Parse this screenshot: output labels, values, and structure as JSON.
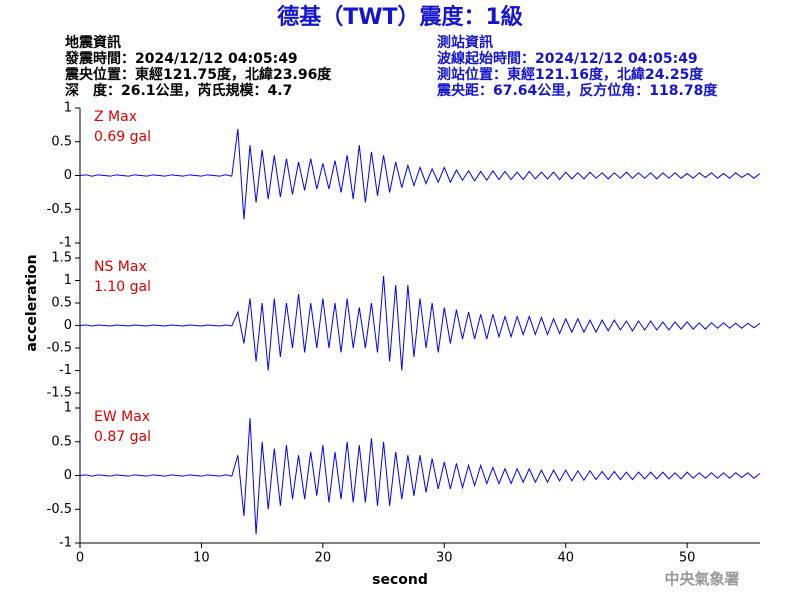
{
  "chart_data": {
    "type": "line",
    "title": "德基（TWT）震度：1級",
    "info_left": [
      "地震資訊",
      "發震時間：2024/12/12 04:05:49",
      "震央位置：東經121.75度，北緯23.96度",
      "深　度：26.1公里，芮氏規模：4.7"
    ],
    "info_right": [
      "測站資訊",
      "波線起始時間：2024/12/12 04:05:49",
      "測站位置：東經121.16度，北緯24.25度",
      "震央距：67.64公里，反方位角：118.78度"
    ],
    "ylabel": "acceleration",
    "xlabel": "second",
    "credit": "中央氣象署",
    "color": "#0000ff",
    "xlim": [
      0,
      56
    ],
    "xticks": [
      0,
      10,
      20,
      30,
      40,
      50
    ],
    "x": [
      0,
      0.5,
      1,
      1.5,
      2,
      2.5,
      3,
      3.5,
      4,
      4.5,
      5,
      5.5,
      6,
      6.5,
      7,
      7.5,
      8,
      8.5,
      9,
      9.5,
      10,
      10.5,
      11,
      11.5,
      12,
      12.5,
      13,
      13.5,
      14,
      14.5,
      15,
      15.5,
      16,
      16.5,
      17,
      17.5,
      18,
      18.5,
      19,
      19.5,
      20,
      20.5,
      21,
      21.5,
      22,
      22.5,
      23,
      23.5,
      24,
      24.5,
      25,
      25.5,
      26,
      26.5,
      27,
      27.5,
      28,
      28.5,
      29,
      29.5,
      30,
      30.5,
      31,
      31.5,
      32,
      32.5,
      33,
      33.5,
      34,
      34.5,
      35,
      35.5,
      36,
      36.5,
      37,
      37.5,
      38,
      38.5,
      39,
      39.5,
      40,
      40.5,
      41,
      41.5,
      42,
      42.5,
      43,
      43.5,
      44,
      44.5,
      45,
      45.5,
      46,
      46.5,
      47,
      47.5,
      48,
      48.5,
      49,
      49.5,
      50,
      50.5,
      51,
      51.5,
      52,
      52.5,
      53,
      53.5,
      54,
      54.5,
      55,
      55.5,
      56
    ],
    "panels": [
      {
        "name": "Z Max",
        "max_label": "0.69 gal",
        "ylim": [
          -1,
          1
        ],
        "yticks": [
          -1,
          -0.5,
          0,
          0.5,
          1
        ],
        "values": [
          0,
          0.01,
          -0.01,
          0.01,
          0,
          -0.01,
          0.01,
          0,
          -0.01,
          0.01,
          0,
          -0.01,
          0.01,
          0,
          -0.01,
          0.01,
          0,
          -0.01,
          0.01,
          0,
          -0.01,
          0.01,
          0,
          -0.01,
          0.01,
          -0.01,
          0.69,
          -0.65,
          0.45,
          -0.4,
          0.38,
          -0.35,
          0.3,
          -0.32,
          0.25,
          -0.28,
          0.2,
          -0.22,
          0.25,
          -0.2,
          0.18,
          -0.2,
          0.22,
          -0.25,
          0.3,
          -0.35,
          0.45,
          -0.4,
          0.35,
          -0.3,
          0.3,
          -0.25,
          0.2,
          -0.18,
          0.15,
          -0.15,
          0.12,
          -0.12,
          0.1,
          -0.1,
          0.12,
          -0.1,
          0.08,
          -0.07,
          0.07,
          -0.08,
          0.06,
          -0.07,
          0.07,
          -0.06,
          0.06,
          -0.06,
          0.05,
          -0.06,
          0.06,
          -0.05,
          0.05,
          -0.05,
          0.05,
          -0.06,
          0.05,
          -0.05,
          0.04,
          -0.05,
          0.05,
          -0.04,
          0.04,
          -0.05,
          0.04,
          -0.04,
          0.05,
          -0.04,
          0.04,
          -0.04,
          0.04,
          -0.05,
          0.04,
          -0.04,
          0.04,
          -0.04,
          0.03,
          -0.04,
          0.04,
          -0.03,
          0.04,
          -0.04,
          0.03,
          -0.04,
          0.04,
          -0.03,
          0.03,
          -0.04,
          0.03
        ]
      },
      {
        "name": "NS Max",
        "max_label": "1.10 gal",
        "ylim": [
          -1.5,
          1.5
        ],
        "yticks": [
          -1.5,
          -1,
          -0.5,
          0,
          0.5,
          1,
          1.5
        ],
        "values": [
          0,
          0.01,
          -0.01,
          0.01,
          0,
          -0.01,
          0.01,
          0,
          -0.01,
          0.01,
          0,
          -0.01,
          0.01,
          0,
          -0.01,
          0.01,
          0,
          -0.01,
          0.01,
          0,
          -0.01,
          0.01,
          0,
          -0.01,
          0.01,
          -0.01,
          0.3,
          -0.4,
          0.6,
          -0.8,
          0.5,
          -1.0,
          0.6,
          -0.7,
          0.5,
          -0.5,
          0.7,
          -0.6,
          0.5,
          -0.5,
          0.6,
          -0.5,
          0.5,
          -0.6,
          0.6,
          -0.5,
          0.4,
          -0.5,
          0.5,
          -0.6,
          1.1,
          -0.8,
          0.9,
          -1.0,
          0.9,
          -0.7,
          0.6,
          -0.5,
          0.5,
          -0.6,
          0.4,
          -0.4,
          0.35,
          -0.3,
          0.3,
          -0.3,
          0.25,
          -0.3,
          0.25,
          -0.25,
          0.2,
          -0.25,
          0.2,
          -0.2,
          0.2,
          -0.2,
          0.18,
          -0.2,
          0.15,
          -0.18,
          0.15,
          -0.15,
          0.15,
          -0.15,
          0.12,
          -0.15,
          0.12,
          -0.12,
          0.12,
          -0.1,
          0.1,
          -0.12,
          0.1,
          -0.1,
          0.1,
          -0.1,
          0.08,
          -0.1,
          0.08,
          -0.08,
          0.08,
          -0.08,
          0.06,
          -0.08,
          0.06,
          -0.06,
          0.06,
          -0.06,
          0.05,
          -0.06,
          0.05,
          -0.05,
          0.05
        ]
      },
      {
        "name": "EW Max",
        "max_label": "0.87 gal",
        "ylim": [
          -1,
          1
        ],
        "yticks": [
          -1,
          -0.5,
          0,
          0.5,
          1
        ],
        "values": [
          0,
          0.01,
          -0.01,
          0.01,
          0,
          -0.01,
          0.01,
          0,
          -0.01,
          0.01,
          0,
          -0.01,
          0.01,
          0,
          -0.01,
          0.01,
          0,
          -0.01,
          0.01,
          0,
          -0.01,
          0.01,
          0,
          -0.01,
          0.01,
          -0.01,
          0.3,
          -0.6,
          0.85,
          -0.87,
          0.5,
          -0.5,
          0.4,
          -0.45,
          0.45,
          -0.35,
          0.3,
          -0.35,
          0.35,
          -0.3,
          0.45,
          -0.4,
          0.35,
          -0.35,
          0.5,
          -0.4,
          0.45,
          -0.4,
          0.55,
          -0.45,
          0.5,
          -0.45,
          0.35,
          -0.35,
          0.3,
          -0.3,
          0.3,
          -0.25,
          0.25,
          -0.2,
          0.2,
          -0.2,
          0.18,
          -0.18,
          0.15,
          -0.15,
          0.15,
          -0.12,
          0.12,
          -0.12,
          0.1,
          -0.12,
          0.1,
          -0.1,
          0.1,
          -0.1,
          0.08,
          -0.1,
          0.08,
          -0.08,
          0.08,
          -0.08,
          0.07,
          -0.07,
          0.07,
          -0.06,
          0.06,
          -0.06,
          0.06,
          -0.06,
          0.05,
          -0.06,
          0.05,
          -0.05,
          0.05,
          -0.05,
          0.05,
          -0.05,
          0.04,
          -0.05,
          0.05,
          -0.04,
          0.04,
          -0.04,
          0.04,
          -0.04,
          0.04,
          -0.04,
          0.04,
          -0.03,
          0.04,
          -0.04,
          0.03
        ]
      }
    ]
  }
}
